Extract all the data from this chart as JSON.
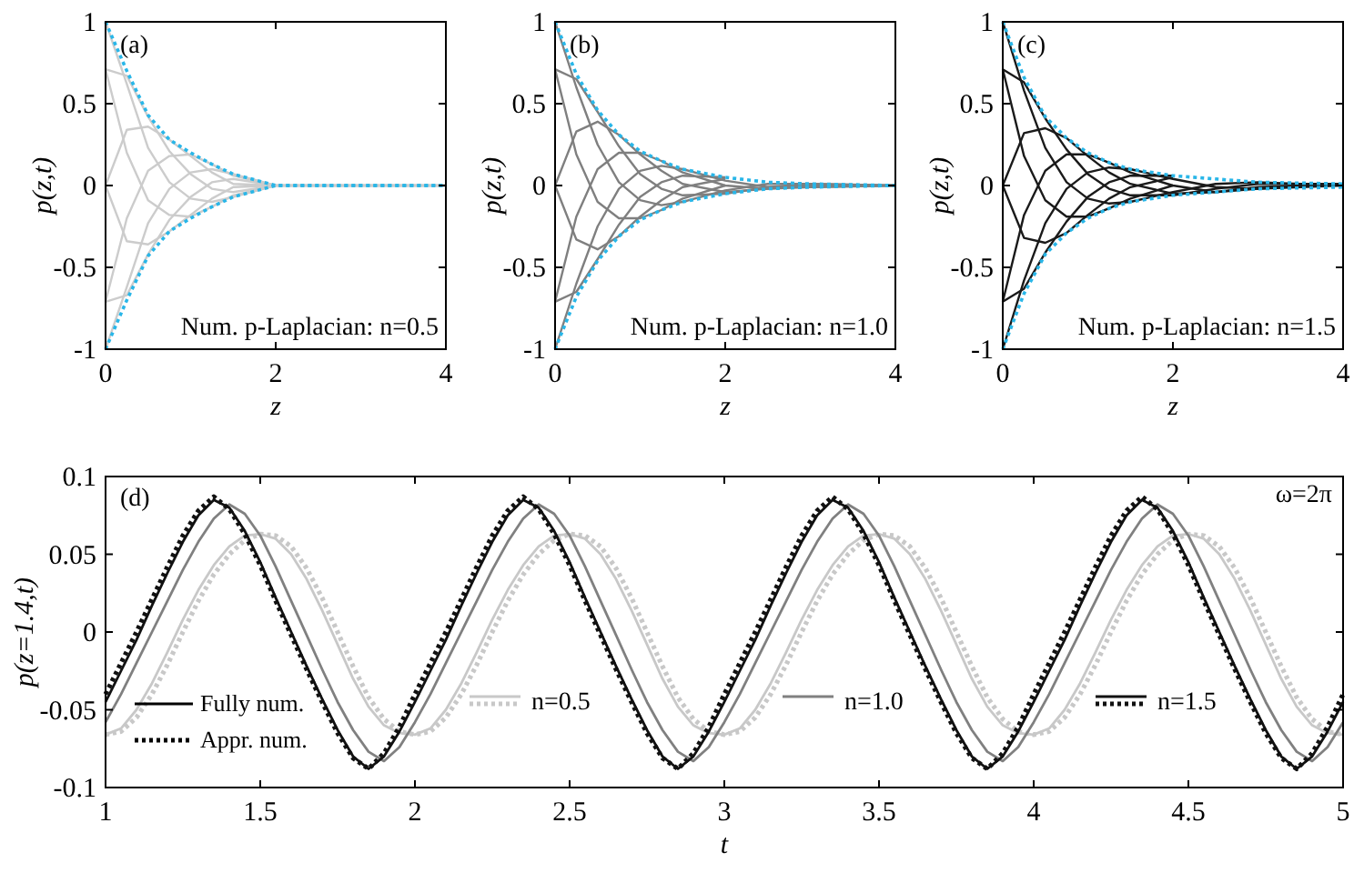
{
  "chart_data": [
    {
      "type": "line",
      "xlabel": "z",
      "ylabel": "p(z,t)",
      "annotations": [
        "(a)",
        "Num. p-Laplacian: n=0.5"
      ],
      "xlim": [
        0,
        4
      ],
      "ylim": [
        -1,
        1
      ],
      "xticks": [
        0,
        2,
        4
      ],
      "yticks": [
        -1,
        -0.5,
        0,
        0.5,
        1
      ],
      "x": [
        0,
        0.25,
        0.5,
        0.75,
        1,
        1.25,
        1.5,
        2,
        2.5,
        3,
        4
      ],
      "series": [
        {
          "color": "#cccccc",
          "values": [
            1,
            0.62,
            0.23,
            0.02,
            -0.08,
            -0.1,
            -0.07,
            0,
            0,
            0,
            0
          ]
        },
        {
          "color": "#cccccc",
          "values": [
            0.71,
            0.67,
            0.42,
            0.21,
            0.07,
            -0.02,
            -0.04,
            0,
            0,
            0,
            0
          ]
        },
        {
          "color": "#cccccc",
          "values": [
            0,
            0.34,
            0.36,
            0.28,
            0.18,
            0.08,
            0.01,
            0,
            0,
            0,
            0
          ]
        },
        {
          "color": "#cccccc",
          "values": [
            -0.71,
            -0.2,
            0.09,
            0.18,
            0.19,
            0.13,
            0.06,
            0,
            0,
            0,
            0
          ]
        },
        {
          "color": "#cccccc",
          "values": [
            -1,
            -0.62,
            -0.23,
            -0.02,
            0.08,
            0.1,
            0.07,
            0,
            0,
            0,
            0
          ]
        },
        {
          "color": "#cccccc",
          "x": [
            0,
            0.25,
            0.5,
            0.75,
            1,
            1.25,
            1.5,
            2
          ],
          "values": [
            -0.71,
            -0.67,
            -0.42,
            -0.21,
            -0.07,
            0.02,
            0.04,
            0
          ]
        },
        {
          "color": "#cccccc",
          "x": [
            0,
            0.25,
            0.5,
            0.75,
            1,
            1.25,
            1.5,
            2
          ],
          "values": [
            0,
            -0.34,
            -0.36,
            -0.28,
            -0.18,
            -0.08,
            -0.01,
            0
          ]
        },
        {
          "color": "#cccccc",
          "x": [
            0,
            0.25,
            0.5,
            0.75,
            1,
            1.25,
            1.5,
            2
          ],
          "values": [
            0.71,
            0.2,
            -0.09,
            -0.18,
            -0.19,
            -0.13,
            -0.06,
            0
          ]
        },
        {
          "color": "#29b6e8",
          "line_style": "dotted",
          "values": [
            1,
            0.7,
            0.43,
            0.28,
            0.2,
            0.13,
            0.07,
            0,
            0,
            0,
            0
          ]
        },
        {
          "color": "#29b6e8",
          "line_style": "dotted",
          "values": [
            -1,
            -0.7,
            -0.43,
            -0.28,
            -0.2,
            -0.13,
            -0.07,
            0,
            0,
            0,
            0
          ]
        }
      ]
    },
    {
      "type": "line",
      "xlabel": "z",
      "ylabel": "p(z,t)",
      "annotations": [
        "(b)",
        "Num. p-Laplacian: n=1.0"
      ],
      "xlim": [
        0,
        4
      ],
      "ylim": [
        -1,
        1
      ],
      "xticks": [
        0,
        2,
        4
      ],
      "yticks": [
        -1,
        -0.5,
        0,
        0.5,
        1
      ],
      "x": [
        0,
        0.25,
        0.5,
        0.75,
        1,
        1.25,
        1.5,
        2,
        2.5,
        3,
        4
      ],
      "series": [
        {
          "color": "#7f7f7f",
          "values": [
            1,
            0.6,
            0.25,
            0.02,
            -0.09,
            -0.12,
            -0.1,
            -0.03,
            0.01,
            0.01,
            0
          ]
        },
        {
          "color": "#7f7f7f",
          "values": [
            0.71,
            0.65,
            0.45,
            0.24,
            0.07,
            -0.02,
            -0.06,
            -0.05,
            -0.01,
            0.01,
            0
          ]
        },
        {
          "color": "#7f7f7f",
          "values": [
            0,
            0.33,
            0.39,
            0.31,
            0.19,
            0.09,
            0.01,
            -0.04,
            -0.02,
            0,
            0
          ]
        },
        {
          "color": "#7f7f7f",
          "values": [
            -0.71,
            -0.19,
            0.1,
            0.2,
            0.2,
            0.15,
            0.08,
            0,
            -0.02,
            -0.01,
            0
          ]
        },
        {
          "color": "#7f7f7f",
          "values": [
            -1,
            -0.6,
            -0.25,
            -0.02,
            0.09,
            0.12,
            0.1,
            0.03,
            -0.01,
            -0.01,
            0
          ]
        },
        {
          "color": "#7f7f7f",
          "x": [
            0,
            0.25,
            0.5,
            0.75,
            1,
            1.25,
            1.5,
            2
          ],
          "values": [
            -0.71,
            -0.65,
            -0.45,
            -0.24,
            -0.07,
            0.02,
            0.06,
            0.05
          ]
        },
        {
          "color": "#7f7f7f",
          "x": [
            0,
            0.25,
            0.5,
            0.75,
            1,
            1.25,
            1.5,
            2
          ],
          "values": [
            0,
            -0.33,
            -0.39,
            -0.31,
            -0.19,
            -0.09,
            -0.01,
            0.04
          ]
        },
        {
          "color": "#7f7f7f",
          "x": [
            0,
            0.25,
            0.5,
            0.75,
            1,
            1.25,
            1.5,
            2
          ],
          "values": [
            0.71,
            0.19,
            -0.1,
            -0.2,
            -0.2,
            -0.15,
            -0.08,
            0
          ]
        },
        {
          "color": "#29b6e8",
          "line_style": "dotted",
          "values": [
            1,
            0.68,
            0.46,
            0.31,
            0.21,
            0.15,
            0.1,
            0.05,
            0.02,
            0.01,
            0
          ]
        },
        {
          "color": "#29b6e8",
          "line_style": "dotted",
          "values": [
            -1,
            -0.68,
            -0.46,
            -0.31,
            -0.21,
            -0.15,
            -0.1,
            -0.05,
            -0.02,
            -0.01,
            0
          ]
        }
      ]
    },
    {
      "type": "line",
      "xlabel": "z",
      "ylabel": "p(z,t)",
      "annotations": [
        "(c)",
        "Num. p-Laplacian: n=1.5"
      ],
      "xlim": [
        0,
        4
      ],
      "ylim": [
        -1,
        1
      ],
      "xticks": [
        0,
        2,
        4
      ],
      "yticks": [
        -1,
        -0.5,
        0,
        0.5,
        1
      ],
      "x": [
        0,
        0.25,
        0.5,
        0.75,
        1,
        1.25,
        1.5,
        2,
        2.5,
        3,
        4
      ],
      "series": [
        {
          "color": "#1a1a1a",
          "values": [
            1,
            0.58,
            0.23,
            0.02,
            -0.08,
            -0.11,
            -0.1,
            -0.04,
            0.01,
            0.02,
            0
          ]
        },
        {
          "color": "#1a1a1a",
          "values": [
            0.71,
            0.63,
            0.41,
            0.22,
            0.07,
            -0.02,
            -0.06,
            -0.06,
            -0.02,
            0.01,
            0.01
          ]
        },
        {
          "color": "#1a1a1a",
          "values": [
            0,
            0.32,
            0.35,
            0.29,
            0.18,
            0.08,
            0.01,
            -0.05,
            -0.04,
            -0.01,
            0.01
          ]
        },
        {
          "color": "#1a1a1a",
          "values": [
            -0.71,
            -0.18,
            0.09,
            0.19,
            0.19,
            0.14,
            0.08,
            0,
            -0.04,
            -0.02,
            0.01
          ]
        },
        {
          "color": "#1a1a1a",
          "values": [
            -1,
            -0.58,
            -0.23,
            -0.02,
            0.08,
            0.11,
            0.1,
            0.04,
            -0.01,
            -0.02,
            0
          ]
        },
        {
          "color": "#1a1a1a",
          "x": [
            0,
            0.25,
            0.5,
            0.75,
            1,
            1.25,
            1.5,
            2
          ],
          "values": [
            -0.71,
            -0.63,
            -0.41,
            -0.22,
            -0.07,
            0.02,
            0.06,
            0.06
          ]
        },
        {
          "color": "#1a1a1a",
          "x": [
            0,
            0.25,
            0.5,
            0.75,
            1,
            1.25,
            1.5,
            2
          ],
          "values": [
            0,
            -0.32,
            -0.35,
            -0.29,
            -0.18,
            -0.08,
            -0.01,
            0.05
          ]
        },
        {
          "color": "#1a1a1a",
          "x": [
            0,
            0.25,
            0.5,
            0.75,
            1,
            1.25,
            1.5,
            2
          ],
          "values": [
            0.71,
            0.18,
            -0.09,
            -0.19,
            -0.19,
            -0.14,
            -0.08,
            0
          ]
        },
        {
          "color": "#29b6e8",
          "line_style": "dotted",
          "values": [
            1,
            0.66,
            0.42,
            0.29,
            0.2,
            0.14,
            0.1,
            0.06,
            0.04,
            0.02,
            0.01
          ]
        },
        {
          "color": "#29b6e8",
          "line_style": "dotted",
          "values": [
            -1,
            -0.66,
            -0.42,
            -0.29,
            -0.2,
            -0.14,
            -0.1,
            -0.06,
            -0.04,
            -0.02,
            -0.01
          ]
        }
      ]
    },
    {
      "type": "line",
      "xlabel": "t",
      "ylabel": "p(z=1.4,t)",
      "annotations": [
        "(d)",
        "ω=2π",
        "Fully num.",
        "Appr. num."
      ],
      "xlim": [
        1,
        5
      ],
      "ylim": [
        -0.1,
        0.1
      ],
      "xticks": [
        1,
        1.5,
        2,
        2.5,
        3,
        3.5,
        4,
        4.5,
        5
      ],
      "yticks": [
        -0.1,
        -0.05,
        0,
        0.05,
        0.1
      ],
      "legend": "bottom",
      "x": [
        1,
        1.05,
        1.1,
        1.15,
        1.2,
        1.25,
        1.3,
        1.35,
        1.4,
        1.45,
        1.5,
        1.55,
        1.6,
        1.65,
        1.7,
        1.75,
        1.8,
        1.85,
        1.9,
        1.95,
        2,
        2.05,
        2.1,
        2.15,
        2.2,
        2.25,
        2.3,
        2.35,
        2.4,
        2.45,
        2.5,
        2.55,
        2.6,
        2.65,
        2.7,
        2.75,
        2.8,
        2.85,
        2.9,
        2.95,
        3,
        3.05,
        3.1,
        3.15,
        3.2,
        3.25,
        3.3,
        3.35,
        3.4,
        3.45,
        3.5,
        3.55,
        3.6,
        3.65,
        3.7,
        3.75,
        3.8,
        3.85,
        3.9,
        3.95,
        4,
        4.05,
        4.1,
        4.15,
        4.2,
        4.25,
        4.3,
        4.35,
        4.4,
        4.45,
        4.5,
        4.55,
        4.6,
        4.65,
        4.7,
        4.75,
        4.8,
        4.85,
        4.9,
        4.95,
        5
      ],
      "series": [
        {
          "name": "n=0.5",
          "color": "#c8c8c8",
          "values": [
            -0.066,
            -0.062,
            -0.05,
            -0.033,
            -0.013,
            0.008,
            0.027,
            0.043,
            0.055,
            0.062,
            0.063,
            0.06,
            0.05,
            0.034,
            0.014,
            -0.008,
            -0.03,
            -0.048,
            -0.06,
            -0.065,
            -0.066,
            -0.062,
            -0.05,
            -0.033,
            -0.013,
            0.008,
            0.027,
            0.043,
            0.055,
            0.062,
            0.063,
            0.06,
            0.05,
            0.034,
            0.014,
            -0.008,
            -0.03,
            -0.048,
            -0.06,
            -0.065,
            -0.066,
            -0.062,
            -0.05,
            -0.033,
            -0.013,
            0.008,
            0.027,
            0.043,
            0.055,
            0.062,
            0.063,
            0.06,
            0.05,
            0.034,
            0.014,
            -0.008,
            -0.03,
            -0.048,
            -0.06,
            -0.065,
            -0.066,
            -0.062,
            -0.05,
            -0.033,
            -0.013,
            0.008,
            0.027,
            0.043,
            0.055,
            0.062,
            0.063,
            0.06,
            0.05,
            0.034,
            0.014,
            -0.008,
            -0.03,
            -0.048,
            -0.06,
            -0.065,
            -0.066
          ]
        },
        {
          "color": "#c8c8c8",
          "line_style": "dotted",
          "values": [
            -0.066,
            -0.064,
            -0.055,
            -0.04,
            -0.021,
            0,
            0.02,
            0.037,
            0.05,
            0.059,
            0.063,
            0.062,
            0.055,
            0.041,
            0.022,
            0,
            -0.022,
            -0.042,
            -0.056,
            -0.064,
            -0.066,
            -0.064,
            -0.055,
            -0.04,
            -0.021,
            0,
            0.02,
            0.037,
            0.05,
            0.059,
            0.063,
            0.062,
            0.055,
            0.041,
            0.022,
            0,
            -0.022,
            -0.042,
            -0.056,
            -0.064,
            -0.066,
            -0.064,
            -0.055,
            -0.04,
            -0.021,
            0,
            0.02,
            0.037,
            0.05,
            0.059,
            0.063,
            0.062,
            0.055,
            0.041,
            0.022,
            0,
            -0.022,
            -0.042,
            -0.056,
            -0.064,
            -0.066,
            -0.064,
            -0.055,
            -0.04,
            -0.021,
            0,
            0.02,
            0.037,
            0.05,
            0.059,
            0.063,
            0.062,
            0.055,
            0.041,
            0.022,
            0,
            -0.022,
            -0.042,
            -0.056,
            -0.064,
            -0.066
          ]
        },
        {
          "name": "n=1.0",
          "color": "#808080",
          "values": [
            -0.058,
            -0.04,
            -0.02,
            0,
            0.02,
            0.04,
            0.058,
            0.073,
            0.082,
            0.076,
            0.062,
            0.042,
            0.02,
            -0.002,
            -0.024,
            -0.045,
            -0.063,
            -0.077,
            -0.083,
            -0.074,
            -0.058,
            -0.04,
            -0.02,
            0,
            0.02,
            0.04,
            0.058,
            0.073,
            0.082,
            0.076,
            0.062,
            0.042,
            0.02,
            -0.002,
            -0.024,
            -0.045,
            -0.063,
            -0.077,
            -0.083,
            -0.074,
            -0.058,
            -0.04,
            -0.02,
            0,
            0.02,
            0.04,
            0.058,
            0.073,
            0.082,
            0.076,
            0.062,
            0.042,
            0.02,
            -0.002,
            -0.024,
            -0.045,
            -0.063,
            -0.077,
            -0.083,
            -0.074,
            -0.058,
            -0.04,
            -0.02,
            0,
            0.02,
            0.04,
            0.058,
            0.073,
            0.082,
            0.076,
            0.062,
            0.042,
            0.02,
            -0.002,
            -0.024,
            -0.045,
            -0.063,
            -0.077,
            -0.083,
            -0.074,
            -0.058
          ]
        },
        {
          "name": "n=1.5",
          "color": "#111111",
          "values": [
            -0.045,
            -0.025,
            -0.005,
            0.017,
            0.038,
            0.058,
            0.075,
            0.085,
            0.08,
            0.065,
            0.045,
            0.022,
            0,
            -0.022,
            -0.043,
            -0.063,
            -0.08,
            -0.088,
            -0.08,
            -0.064,
            -0.045,
            -0.025,
            -0.005,
            0.017,
            0.038,
            0.058,
            0.075,
            0.085,
            0.08,
            0.065,
            0.045,
            0.022,
            0,
            -0.022,
            -0.043,
            -0.063,
            -0.08,
            -0.088,
            -0.08,
            -0.064,
            -0.045,
            -0.025,
            -0.005,
            0.017,
            0.038,
            0.058,
            0.075,
            0.085,
            0.08,
            0.065,
            0.045,
            0.022,
            0,
            -0.022,
            -0.043,
            -0.063,
            -0.08,
            -0.088,
            -0.08,
            -0.064,
            -0.045,
            -0.025,
            -0.005,
            0.017,
            0.038,
            0.058,
            0.075,
            0.085,
            0.08,
            0.065,
            0.045,
            0.022,
            0,
            -0.022,
            -0.043,
            -0.063,
            -0.08,
            -0.088,
            -0.08,
            -0.064,
            -0.045
          ]
        },
        {
          "color": "#111111",
          "line_style": "dotted",
          "values": [
            -0.04,
            -0.02,
            0,
            0.021,
            0.042,
            0.062,
            0.078,
            0.087,
            0.079,
            0.063,
            0.043,
            0.02,
            -0.002,
            -0.024,
            -0.045,
            -0.065,
            -0.081,
            -0.088,
            -0.078,
            -0.061,
            -0.04,
            -0.02,
            0,
            0.021,
            0.042,
            0.062,
            0.078,
            0.087,
            0.079,
            0.063,
            0.043,
            0.02,
            -0.002,
            -0.024,
            -0.045,
            -0.065,
            -0.081,
            -0.088,
            -0.078,
            -0.061,
            -0.04,
            -0.02,
            0,
            0.021,
            0.042,
            0.062,
            0.078,
            0.087,
            0.079,
            0.063,
            0.043,
            0.02,
            -0.002,
            -0.024,
            -0.045,
            -0.065,
            -0.081,
            -0.088,
            -0.078,
            -0.061,
            -0.04,
            -0.02,
            0,
            0.021,
            0.042,
            0.062,
            0.078,
            0.087,
            0.079,
            0.063,
            0.043,
            0.02,
            -0.002,
            -0.024,
            -0.045,
            -0.065,
            -0.081,
            -0.088,
            -0.078,
            -0.061,
            -0.04
          ]
        }
      ]
    }
  ]
}
